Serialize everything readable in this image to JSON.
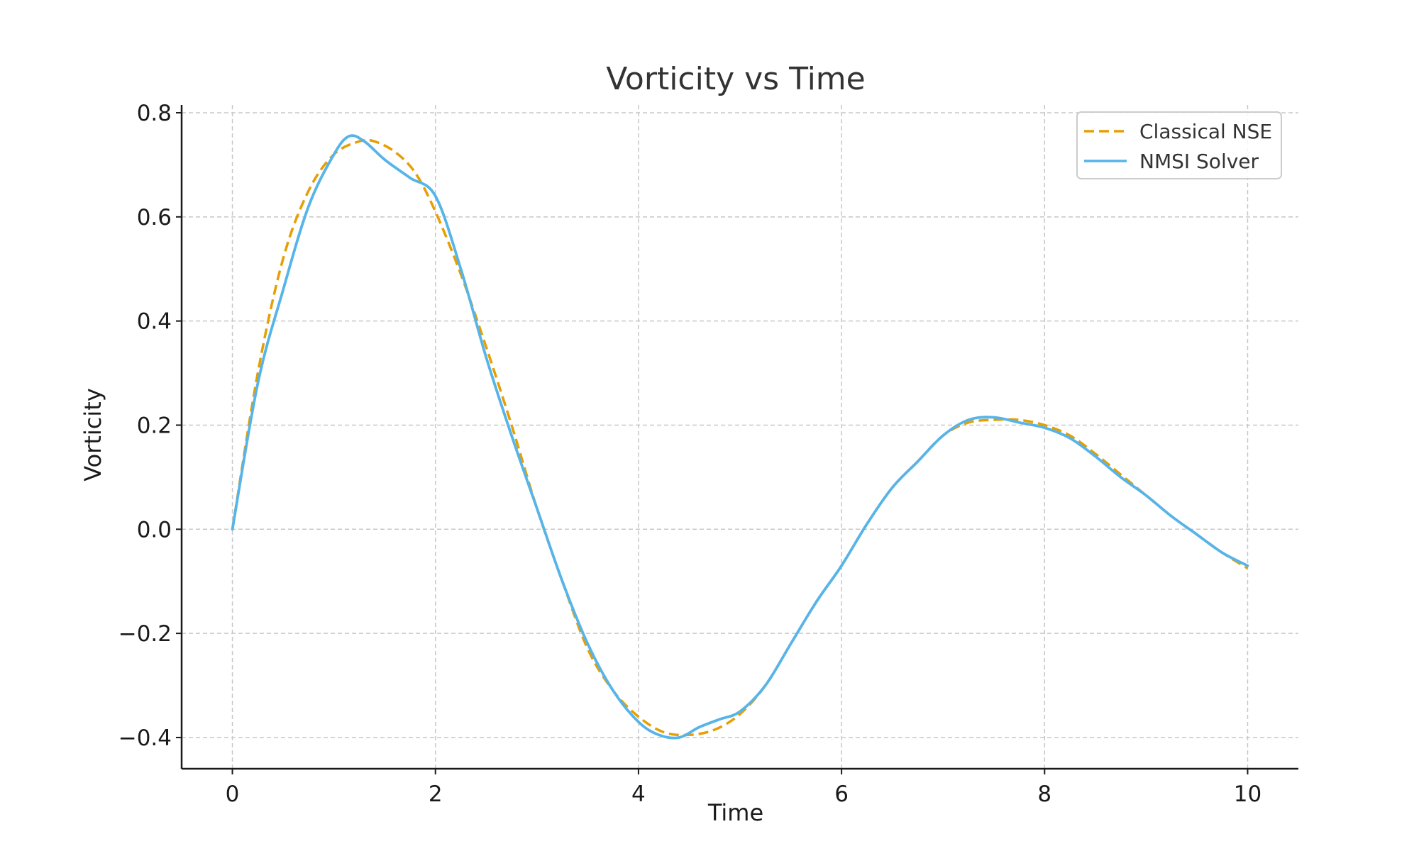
{
  "chart_data": {
    "type": "line",
    "title": "Vorticity vs Time",
    "xlabel": "Time",
    "ylabel": "Vorticity",
    "xlim": [
      -0.5,
      10.5
    ],
    "ylim": [
      -0.46,
      0.815
    ],
    "grid": true,
    "legend_position": "top-right",
    "x_ticks": [
      0,
      2,
      4,
      6,
      8,
      10
    ],
    "x_tick_labels": [
      "0",
      "2",
      "4",
      "6",
      "8",
      "10"
    ],
    "y_ticks": [
      0.8,
      0.6,
      0.4,
      0.2,
      0.0,
      -0.2,
      -0.4
    ],
    "y_tick_labels": [
      "0.8",
      "0.6",
      "0.4",
      "0.2",
      "0.0",
      "−0.2",
      "−0.4"
    ],
    "series": [
      {
        "name": "Classical NSE",
        "style": "dashed",
        "color": "#E69F00",
        "x": [
          0,
          0.25,
          0.5,
          0.75,
          1.0,
          1.25,
          1.4,
          1.6,
          1.8,
          2.0,
          2.25,
          2.5,
          2.75,
          3.0,
          3.25,
          3.5,
          3.75,
          4.0,
          4.25,
          4.5,
          4.75,
          5.0,
          5.25,
          5.5,
          5.75,
          6.0,
          6.25,
          6.5,
          6.75,
          7.0,
          7.25,
          7.5,
          7.75,
          8.0,
          8.25,
          8.5,
          8.75,
          9.0,
          9.25,
          9.5,
          9.75,
          10.0
        ],
        "y": [
          0.0,
          0.3,
          0.52,
          0.65,
          0.72,
          0.745,
          0.745,
          0.725,
          0.685,
          0.61,
          0.49,
          0.35,
          0.2,
          0.04,
          -0.1,
          -0.23,
          -0.31,
          -0.36,
          -0.39,
          -0.395,
          -0.385,
          -0.355,
          -0.3,
          -0.22,
          -0.14,
          -0.07,
          0.01,
          0.08,
          0.13,
          0.18,
          0.205,
          0.21,
          0.21,
          0.2,
          0.18,
          0.145,
          0.105,
          0.065,
          0.025,
          -0.01,
          -0.045,
          -0.075
        ]
      },
      {
        "name": "NMSI Solver",
        "style": "solid",
        "color": "#56B4E9",
        "x": [
          0,
          0.25,
          0.5,
          0.75,
          1.0,
          1.15,
          1.3,
          1.5,
          1.75,
          2.0,
          2.25,
          2.5,
          2.75,
          3.0,
          3.25,
          3.5,
          3.75,
          4.0,
          4.2,
          4.4,
          4.6,
          4.8,
          5.0,
          5.25,
          5.5,
          5.75,
          6.0,
          6.25,
          6.5,
          6.75,
          7.0,
          7.25,
          7.5,
          7.75,
          8.0,
          8.25,
          8.5,
          8.75,
          9.0,
          9.25,
          9.5,
          9.75,
          10.0
        ],
        "y": [
          0.0,
          0.28,
          0.46,
          0.62,
          0.72,
          0.755,
          0.745,
          0.71,
          0.675,
          0.64,
          0.5,
          0.33,
          0.18,
          0.04,
          -0.1,
          -0.22,
          -0.31,
          -0.37,
          -0.395,
          -0.4,
          -0.38,
          -0.365,
          -0.35,
          -0.3,
          -0.22,
          -0.14,
          -0.07,
          0.01,
          0.08,
          0.13,
          0.18,
          0.21,
          0.215,
          0.205,
          0.195,
          0.175,
          0.14,
          0.1,
          0.065,
          0.025,
          -0.01,
          -0.045,
          -0.07
        ]
      }
    ]
  }
}
